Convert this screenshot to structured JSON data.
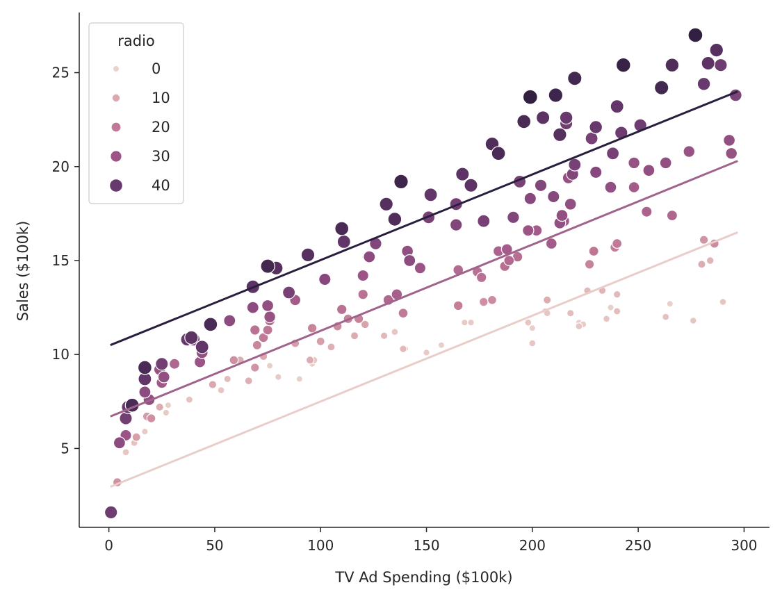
{
  "chart_data": {
    "type": "scatter",
    "title": "",
    "xlabel": "TV Ad Spending ($100k)",
    "ylabel": "Sales ($100k)",
    "xlim": [
      -14,
      312
    ],
    "ylim": [
      0.8,
      28.2
    ],
    "xticks": [
      0,
      50,
      100,
      150,
      200,
      250,
      300
    ],
    "yticks": [
      5,
      10,
      15,
      20,
      25
    ],
    "grid": false,
    "legend": {
      "title": "radio",
      "position": "top-left",
      "entries": [
        {
          "label": "0",
          "value": 0
        },
        {
          "label": "10",
          "value": 10
        },
        {
          "label": "20",
          "value": 20
        },
        {
          "label": "30",
          "value": 30
        },
        {
          "label": "40",
          "value": 40
        }
      ]
    },
    "hue_variable": "radio",
    "size_variable": "radio",
    "color_scale": {
      "min": 0,
      "max": 49.6,
      "stops": [
        [
          0,
          "#ebd3cc"
        ],
        [
          0.2,
          "#dba8ae"
        ],
        [
          0.4,
          "#c17a96"
        ],
        [
          0.6,
          "#9d5587"
        ],
        [
          0.8,
          "#6a3a6f"
        ],
        [
          1.0,
          "#2d1e3e"
        ]
      ]
    },
    "series": [
      {
        "name": "",
        "radio": 0,
        "color": "#e8cdc8",
        "points": [
          [
            0.7,
            2.96
          ],
          [
            297,
            16.5
          ]
        ]
      },
      {
        "name": "",
        "radio": 25,
        "color": "#a0638b",
        "points": [
          [
            0.7,
            6.7
          ],
          [
            297,
            20.3
          ]
        ]
      },
      {
        "name": "",
        "radio": 50,
        "color": "#2a1e3f",
        "points": [
          [
            0.7,
            10.5
          ],
          [
            297,
            24.0
          ]
        ]
      }
    ],
    "points": [
      [
        4,
        3.2,
        15
      ],
      [
        8,
        4.8,
        3
      ],
      [
        12,
        5.3,
        4
      ],
      [
        13,
        5.6,
        12
      ],
      [
        17,
        5.9,
        2
      ],
      [
        20,
        6.6,
        15
      ],
      [
        24,
        7.2,
        9
      ],
      [
        27,
        6.9,
        2
      ],
      [
        28,
        7.3,
        1
      ],
      [
        38,
        7.6,
        4
      ],
      [
        53,
        8.1,
        3
      ],
      [
        56,
        8.7,
        5
      ],
      [
        66,
        8.6,
        8
      ],
      [
        73,
        9.9,
        10
      ],
      [
        76,
        9.4,
        1
      ],
      [
        80,
        8.8,
        2
      ],
      [
        90,
        8.7,
        1
      ],
      [
        95,
        9.7,
        9
      ],
      [
        96,
        9.5,
        1
      ],
      [
        97,
        9.7,
        3
      ],
      [
        100,
        10.7,
        12
      ],
      [
        105,
        10.4,
        8
      ],
      [
        116,
        11.0,
        9
      ],
      [
        121,
        11.6,
        11
      ],
      [
        130,
        11.0,
        6
      ],
      [
        135,
        11.2,
        3
      ],
      [
        139,
        10.3,
        6
      ],
      [
        140,
        10.3,
        1
      ],
      [
        150,
        10.1,
        2
      ],
      [
        157,
        10.5,
        1
      ],
      [
        168,
        11.7,
        2
      ],
      [
        171,
        11.7,
        2
      ],
      [
        198,
        11.7,
        3
      ],
      [
        200,
        11.4,
        1
      ],
      [
        200,
        10.6,
        3
      ],
      [
        206,
        12.3,
        2
      ],
      [
        207,
        12.9,
        9
      ],
      [
        218,
        12.2,
        5
      ],
      [
        222,
        11.7,
        1
      ],
      [
        222,
        11.5,
        3
      ],
      [
        224,
        11.6,
        2
      ],
      [
        226,
        13.4,
        6
      ],
      [
        233,
        13.4,
        7
      ],
      [
        235,
        11.9,
        3
      ],
      [
        237,
        12.5,
        1
      ],
      [
        240,
        12.3,
        5
      ],
      [
        240,
        13.2,
        6
      ],
      [
        263,
        12.0,
        4
      ],
      [
        265,
        12.7,
        1
      ],
      [
        276,
        11.8,
        3
      ],
      [
        280,
        14.8,
        9
      ],
      [
        281,
        16.1,
        14
      ],
      [
        284,
        15.0,
        7
      ],
      [
        286,
        15.9,
        16
      ],
      [
        290,
        12.8,
        3
      ],
      [
        18,
        6.7,
        13
      ],
      [
        31,
        9.5,
        25
      ],
      [
        49,
        8.4,
        10
      ],
      [
        59,
        9.7,
        15
      ],
      [
        62,
        9.7,
        9
      ],
      [
        69,
        9.3,
        14
      ],
      [
        69,
        11.3,
        22
      ],
      [
        70,
        10.5,
        17
      ],
      [
        73,
        10.9,
        20
      ],
      [
        75,
        11.3,
        21
      ],
      [
        88,
        10.6,
        12
      ],
      [
        96,
        11.4,
        18
      ],
      [
        108,
        11.5,
        16
      ],
      [
        110,
        12.4,
        22
      ],
      [
        113,
        11.9,
        18
      ],
      [
        118,
        11.9,
        18
      ],
      [
        120,
        13.2,
        22
      ],
      [
        132,
        12.9,
        25
      ],
      [
        136,
        13.2,
        27
      ],
      [
        139,
        12.2,
        20
      ],
      [
        165,
        12.6,
        19
      ],
      [
        177,
        12.8,
        15
      ],
      [
        181,
        12.9,
        16
      ],
      [
        189,
        15.0,
        24
      ],
      [
        207,
        12.2,
        3
      ],
      [
        227,
        14.8,
        18
      ],
      [
        229,
        15.5,
        21
      ],
      [
        239,
        15.7,
        19
      ],
      [
        240,
        15.9,
        20
      ],
      [
        254,
        17.6,
        26
      ],
      [
        266,
        17.4,
        25
      ],
      [
        274,
        20.8,
        31
      ],
      [
        1,
        1.6,
        39
      ],
      [
        5,
        5.3,
        33
      ],
      [
        8,
        5.7,
        30
      ],
      [
        8,
        6.6,
        38
      ],
      [
        9,
        7.2,
        40
      ],
      [
        11,
        7.3,
        45
      ],
      [
        17,
        8.0,
        33
      ],
      [
        17,
        8.7,
        41
      ],
      [
        17,
        9.3,
        45
      ],
      [
        19,
        7.6,
        32
      ],
      [
        24,
        9.2,
        31
      ],
      [
        25,
        8.5,
        29
      ],
      [
        25,
        9.5,
        38
      ],
      [
        26,
        8.8,
        32
      ],
      [
        37,
        10.8,
        40
      ],
      [
        39,
        10.9,
        42
      ],
      [
        40,
        10.8,
        40
      ],
      [
        43,
        9.6,
        30
      ],
      [
        44,
        10.1,
        32
      ],
      [
        44,
        10.4,
        41
      ],
      [
        48,
        11.6,
        45
      ],
      [
        57,
        11.8,
        33
      ],
      [
        68,
        12.5,
        33
      ],
      [
        68,
        13.6,
        42
      ],
      [
        75,
        12.6,
        32
      ],
      [
        75,
        14.7,
        46
      ],
      [
        76,
        11.8,
        23
      ],
      [
        76,
        12.0,
        31
      ],
      [
        79,
        14.6,
        43
      ],
      [
        85,
        13.3,
        37
      ],
      [
        88,
        12.9,
        28
      ],
      [
        94,
        15.3,
        43
      ],
      [
        102,
        14.0,
        34
      ],
      [
        110,
        16.7,
        45
      ],
      [
        111,
        16.0,
        41
      ],
      [
        120,
        14.2,
        30
      ],
      [
        123,
        15.2,
        33
      ],
      [
        126,
        15.9,
        35
      ],
      [
        131,
        18.0,
        43
      ],
      [
        135,
        17.2,
        44
      ],
      [
        138,
        19.2,
        47
      ],
      [
        141,
        15.5,
        32
      ],
      [
        142,
        15.0,
        33
      ],
      [
        147,
        14.6,
        30
      ],
      [
        151,
        17.3,
        37
      ],
      [
        152,
        18.5,
        41
      ],
      [
        164,
        16.9,
        35
      ],
      [
        164,
        18.0,
        38
      ],
      [
        165,
        14.5,
        24
      ],
      [
        167,
        19.6,
        42
      ],
      [
        171,
        19.0,
        42
      ],
      [
        174,
        14.4,
        22
      ],
      [
        176,
        14.1,
        22
      ],
      [
        177,
        17.1,
        37
      ],
      [
        181,
        21.2,
        44
      ],
      [
        184,
        15.5,
        26
      ],
      [
        184,
        20.7,
        45
      ],
      [
        187,
        14.7,
        23
      ],
      [
        188,
        15.6,
        28
      ],
      [
        191,
        17.3,
        35
      ],
      [
        193,
        15.2,
        23
      ],
      [
        194,
        19.2,
        37
      ],
      [
        196,
        22.4,
        45
      ],
      [
        198,
        16.6,
        30
      ],
      [
        199,
        18.3,
        34
      ],
      [
        199,
        23.7,
        49
      ],
      [
        202,
        16.6,
        28
      ],
      [
        204,
        19.0,
        35
      ],
      [
        205,
        22.6,
        42
      ],
      [
        209,
        15.9,
        28
      ],
      [
        210,
        18.4,
        34
      ],
      [
        211,
        23.8,
        47
      ],
      [
        213,
        17.0,
        32
      ],
      [
        214,
        17.4,
        32
      ],
      [
        213,
        21.7,
        43
      ],
      [
        215,
        17.1,
        28
      ],
      [
        216,
        22.6,
        40
      ],
      [
        216,
        22.3,
        38
      ],
      [
        217,
        19.4,
        31
      ],
      [
        218,
        18.0,
        32
      ],
      [
        219,
        19.6,
        35
      ],
      [
        220,
        20.1,
        37
      ],
      [
        220,
        24.7,
        46
      ],
      [
        228,
        21.5,
        37
      ],
      [
        230,
        19.7,
        34
      ],
      [
        230,
        22.1,
        40
      ],
      [
        237,
        18.9,
        32
      ],
      [
        238,
        20.7,
        37
      ],
      [
        240,
        23.2,
        41
      ],
      [
        242,
        21.8,
        39
      ],
      [
        243,
        25.4,
        48
      ],
      [
        248,
        20.2,
        31
      ],
      [
        248,
        18.9,
        28
      ],
      [
        251,
        22.2,
        39
      ],
      [
        255,
        19.8,
        32
      ],
      [
        261,
        24.2,
        46
      ],
      [
        263,
        20.2,
        32
      ],
      [
        266,
        25.4,
        44
      ],
      [
        277,
        27.0,
        49
      ],
      [
        281,
        24.4,
        40
      ],
      [
        283,
        25.5,
        42
      ],
      [
        287,
        26.2,
        43
      ],
      [
        289,
        25.4,
        39
      ],
      [
        293,
        21.4,
        32
      ],
      [
        294,
        20.7,
        31
      ],
      [
        296,
        23.8,
        36
      ]
    ]
  }
}
